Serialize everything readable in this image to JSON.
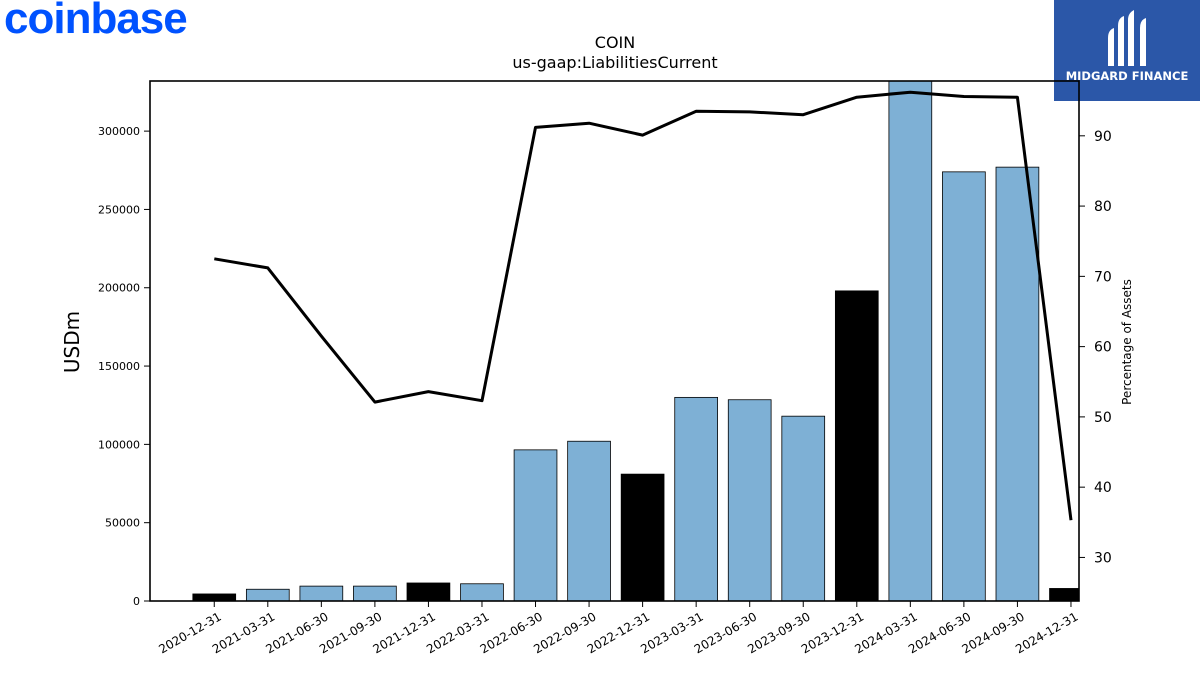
{
  "branding": {
    "left_logo_text": "coinbase",
    "left_logo_color": "#0052ff",
    "right_logo_text": "MIDGARD FINANCE",
    "right_logo_bg": "#2b57a8"
  },
  "chart_data": {
    "type": "bar",
    "title": "COIN",
    "subtitle": "us-gaap:LiabilitiesCurrent",
    "ylabel": "USDm",
    "y2label": "Percentage of Assets",
    "ylim": [
      0,
      332000
    ],
    "y2lim": [
      23.8,
      97.8
    ],
    "yticks": [
      0,
      50000,
      100000,
      150000,
      200000,
      250000,
      300000
    ],
    "y2ticks": [
      30,
      40,
      50,
      60,
      70,
      80,
      90
    ],
    "categories": [
      "2020-12-31",
      "2021-03-31",
      "2021-06-30",
      "2021-09-30",
      "2021-12-31",
      "2022-03-31",
      "2022-06-30",
      "2022-09-30",
      "2022-12-31",
      "2023-03-31",
      "2023-06-30",
      "2023-09-30",
      "2023-12-31",
      "2024-03-31",
      "2024-06-30",
      "2024-09-30",
      "2024-12-31"
    ],
    "values": [
      4500,
      7500,
      9500,
      9500,
      11500,
      11000,
      96500,
      102000,
      81000,
      130000,
      128500,
      118000,
      198000,
      335000,
      274000,
      277000,
      8000
    ],
    "bar_colors": [
      "#000000",
      "#7eb0d5",
      "#7eb0d5",
      "#7eb0d5",
      "#000000",
      "#7eb0d5",
      "#7eb0d5",
      "#7eb0d5",
      "#000000",
      "#7eb0d5",
      "#7eb0d5",
      "#7eb0d5",
      "#000000",
      "#7eb0d5",
      "#7eb0d5",
      "#7eb0d5",
      "#000000"
    ],
    "line_values": [
      72.5,
      71.2,
      61.5,
      52.1,
      53.6,
      52.3,
      91.2,
      91.8,
      90.1,
      93.5,
      93.4,
      93.0,
      95.5,
      96.2,
      95.6,
      95.5,
      35.3
    ],
    "line_color": "#000000",
    "grid": false
  }
}
